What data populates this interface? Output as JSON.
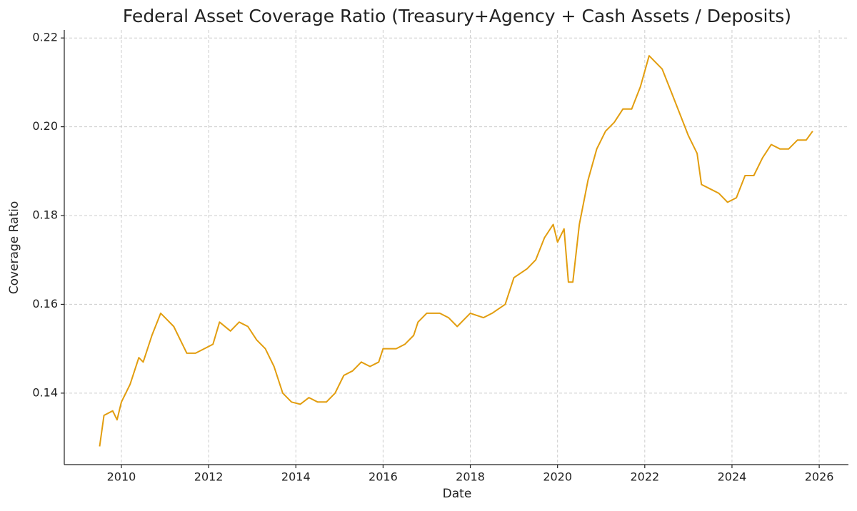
{
  "chart_data": {
    "type": "line",
    "title": "Federal Asset Coverage Ratio (Treasury+Agency + Cash Assets  / Deposits)",
    "xlabel": "Date",
    "ylabel": "Coverage Ratio",
    "x": [
      2009.5,
      2009.6,
      2009.8,
      2009.9,
      2010.0,
      2010.2,
      2010.4,
      2010.5,
      2010.7,
      2010.9,
      2011.0,
      2011.2,
      2011.4,
      2011.5,
      2011.7,
      2011.9,
      2012.1,
      2012.25,
      2012.5,
      2012.7,
      2012.9,
      2013.1,
      2013.3,
      2013.5,
      2013.7,
      2013.9,
      2014.1,
      2014.3,
      2014.5,
      2014.7,
      2014.9,
      2015.1,
      2015.3,
      2015.5,
      2015.7,
      2015.9,
      2016.0,
      2016.3,
      2016.5,
      2016.7,
      2016.8,
      2017.0,
      2017.3,
      2017.5,
      2017.7,
      2017.9,
      2018.0,
      2018.3,
      2018.5,
      2018.8,
      2019.0,
      2019.3,
      2019.5,
      2019.7,
      2019.9,
      2020.0,
      2020.15,
      2020.25,
      2020.35,
      2020.5,
      2020.7,
      2020.9,
      2021.1,
      2021.3,
      2021.5,
      2021.7,
      2021.9,
      2022.1,
      2022.2,
      2022.4,
      2022.6,
      2022.8,
      2023.0,
      2023.2,
      2023.3,
      2023.5,
      2023.7,
      2023.9,
      2024.1,
      2024.3,
      2024.5,
      2024.7,
      2024.9,
      2025.1,
      2025.3,
      2025.5,
      2025.7,
      2025.85
    ],
    "series": [
      {
        "color": "#e29d0e",
        "values": [
          0.128,
          0.135,
          0.136,
          0.134,
          0.138,
          0.142,
          0.148,
          0.147,
          0.153,
          0.158,
          0.157,
          0.155,
          0.151,
          0.149,
          0.149,
          0.15,
          0.151,
          0.156,
          0.154,
          0.156,
          0.155,
          0.152,
          0.15,
          0.146,
          0.14,
          0.138,
          0.1375,
          0.139,
          0.138,
          0.138,
          0.14,
          0.144,
          0.145,
          0.147,
          0.146,
          0.147,
          0.15,
          0.15,
          0.151,
          0.153,
          0.156,
          0.158,
          0.158,
          0.157,
          0.155,
          0.157,
          0.158,
          0.157,
          0.158,
          0.16,
          0.166,
          0.168,
          0.17,
          0.175,
          0.178,
          0.174,
          0.177,
          0.165,
          0.165,
          0.178,
          0.188,
          0.195,
          0.199,
          0.201,
          0.204,
          0.204,
          0.209,
          0.216,
          0.215,
          0.213,
          0.208,
          0.203,
          0.198,
          0.194,
          0.187,
          0.186,
          0.185,
          0.183,
          0.184,
          0.189,
          0.189,
          0.193,
          0.196,
          0.195,
          0.195,
          0.197,
          0.197,
          0.199
        ]
      }
    ],
    "xlim": [
      2008.69,
      2026.67
    ],
    "xticks": [
      2010,
      2012,
      2014,
      2016,
      2018,
      2020,
      2022,
      2024,
      2026
    ],
    "ylim": [
      0.1239,
      0.2218
    ],
    "yticks": [
      0.14,
      0.16,
      0.18,
      {
        "value": 0.2,
        "label": "0.20"
      },
      0.22
    ],
    "grid": true
  }
}
